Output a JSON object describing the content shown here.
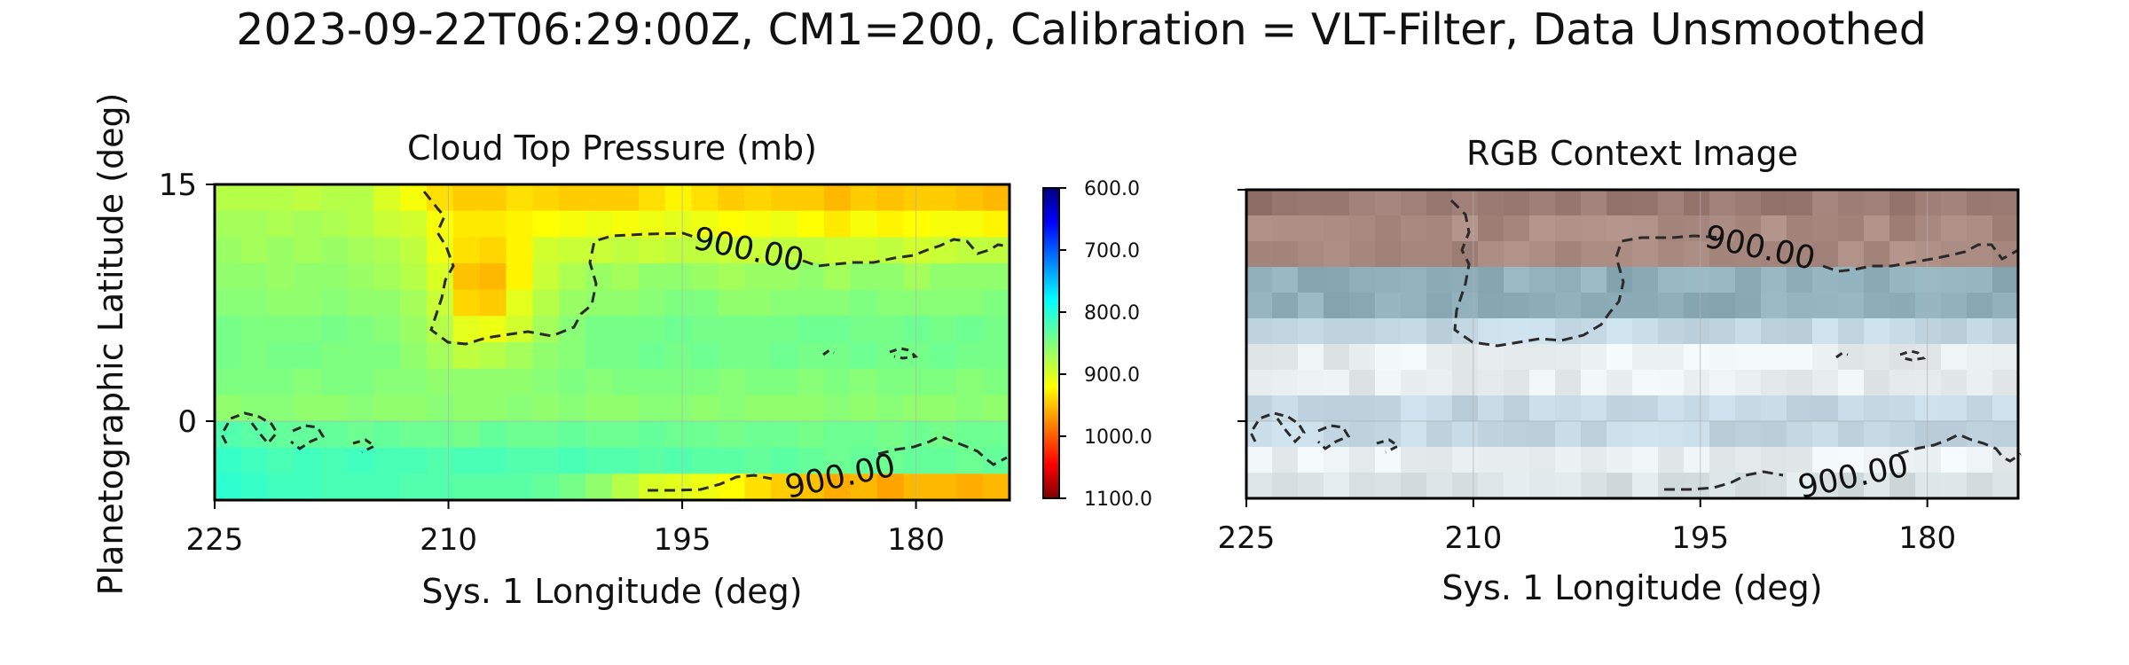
{
  "figure": {
    "suptitle": "2023-09-22T06:29:00Z, CM1=200, Calibration = VLT-Filter, Data Unsmoothed"
  },
  "chart_data": [
    {
      "type": "heatmap",
      "title": "Cloud Top Pressure (mb)",
      "xlabel": "Sys. 1 Longitude (deg)",
      "ylabel": "Planetographic Latitude (deg)",
      "xlim": [
        225,
        174
      ],
      "ylim": [
        -5,
        15
      ],
      "xticks": [
        "225",
        "210",
        "195",
        "180"
      ],
      "xtick_values": [
        225,
        210,
        195,
        180
      ],
      "yticks": [
        "15",
        "0"
      ],
      "ytick_values": [
        15,
        0
      ],
      "grid": true,
      "colormap": "jet_r",
      "colorbar": {
        "range": [
          600,
          1100
        ],
        "ticks": [
          "600.0",
          "700.0",
          "800.0",
          "900.0",
          "1000.0",
          "1100.0"
        ],
        "tick_values": [
          600,
          700,
          800,
          900,
          1000,
          1100
        ]
      },
      "contour_level": 900,
      "contour_labels": [
        "900.00",
        "900.00"
      ],
      "grid_size": {
        "nx": 30,
        "ny": 12
      },
      "values_mb": [
        [
          880,
          880,
          880,
          885,
          880,
          880,
          900,
          915,
          935,
          945,
          945,
          935,
          940,
          945,
          945,
          945,
          935,
          925,
          935,
          945,
          940,
          945,
          945,
          955,
          945,
          950,
          945,
          945,
          950,
          955
        ],
        [
          870,
          870,
          875,
          870,
          875,
          880,
          890,
          895,
          915,
          930,
          930,
          925,
          920,
          915,
          910,
          915,
          910,
          905,
          910,
          920,
          915,
          910,
          920,
          930,
          915,
          925,
          920,
          915,
          915,
          925
        ],
        [
          865,
          870,
          865,
          870,
          865,
          870,
          875,
          885,
          910,
          935,
          940,
          925,
          895,
          890,
          890,
          885,
          890,
          885,
          885,
          890,
          890,
          885,
          885,
          890,
          890,
          885,
          895,
          890,
          885,
          885
        ],
        [
          860,
          860,
          865,
          860,
          860,
          865,
          870,
          880,
          900,
          950,
          955,
          925,
          890,
          875,
          865,
          870,
          860,
          860,
          865,
          870,
          865,
          865,
          860,
          870,
          860,
          860,
          870,
          860,
          860,
          860
        ],
        [
          855,
          855,
          860,
          860,
          855,
          860,
          860,
          870,
          890,
          940,
          945,
          905,
          880,
          865,
          860,
          860,
          855,
          850,
          850,
          860,
          860,
          855,
          855,
          855,
          850,
          855,
          855,
          855,
          855,
          850
        ],
        [
          845,
          850,
          850,
          850,
          845,
          850,
          855,
          865,
          880,
          905,
          910,
          895,
          870,
          855,
          845,
          845,
          845,
          840,
          845,
          845,
          845,
          845,
          840,
          840,
          845,
          845,
          840,
          845,
          840,
          845
        ],
        [
          845,
          850,
          845,
          845,
          850,
          850,
          850,
          860,
          870,
          885,
          880,
          870,
          860,
          855,
          845,
          845,
          840,
          845,
          840,
          845,
          845,
          840,
          845,
          845,
          840,
          845,
          845,
          840,
          845,
          845
        ],
        [
          850,
          850,
          850,
          855,
          850,
          850,
          855,
          855,
          860,
          860,
          860,
          860,
          855,
          850,
          855,
          850,
          850,
          850,
          850,
          855,
          850,
          850,
          855,
          850,
          855,
          850,
          850,
          850,
          855,
          850
        ],
        [
          860,
          855,
          855,
          860,
          860,
          855,
          860,
          860,
          855,
          860,
          860,
          855,
          860,
          855,
          860,
          860,
          855,
          855,
          860,
          855,
          860,
          860,
          860,
          855,
          860,
          855,
          860,
          860,
          855,
          860
        ],
        [
          825,
          830,
          835,
          835,
          835,
          840,
          835,
          840,
          840,
          845,
          835,
          840,
          840,
          835,
          840,
          840,
          835,
          840,
          840,
          845,
          840,
          840,
          845,
          840,
          840,
          845,
          840,
          845,
          840,
          840
        ],
        [
          810,
          815,
          820,
          815,
          820,
          815,
          820,
          820,
          825,
          820,
          820,
          825,
          825,
          820,
          825,
          825,
          830,
          825,
          830,
          830,
          835,
          830,
          835,
          840,
          835,
          840,
          835,
          835,
          840,
          835
        ],
        [
          805,
          810,
          815,
          815,
          820,
          820,
          820,
          825,
          825,
          830,
          830,
          830,
          835,
          845,
          860,
          880,
          900,
          905,
          910,
          920,
          935,
          945,
          950,
          960,
          955,
          965,
          955,
          955,
          960,
          955
        ]
      ]
    },
    {
      "type": "heatmap",
      "title": "RGB Context Image",
      "xlabel": "Sys. 1 Longitude (deg)",
      "xlim": [
        225,
        174
      ],
      "ylim": [
        -5,
        15
      ],
      "xticks": [
        "225",
        "210",
        "195",
        "180"
      ],
      "xtick_values": [
        225,
        210,
        195,
        180
      ],
      "grid": true,
      "contour_level": 900,
      "contour_labels": [
        "900.00",
        "900.00"
      ],
      "image_colors": {
        "band_top": "#9a7a72",
        "band_upper": "#a88a80",
        "band_blue": "#8fb0ba",
        "zone_white": "#e9eef1",
        "zone_lightblue": "#c3d8e2",
        "band_bottom": "#d9e3e6"
      }
    }
  ]
}
